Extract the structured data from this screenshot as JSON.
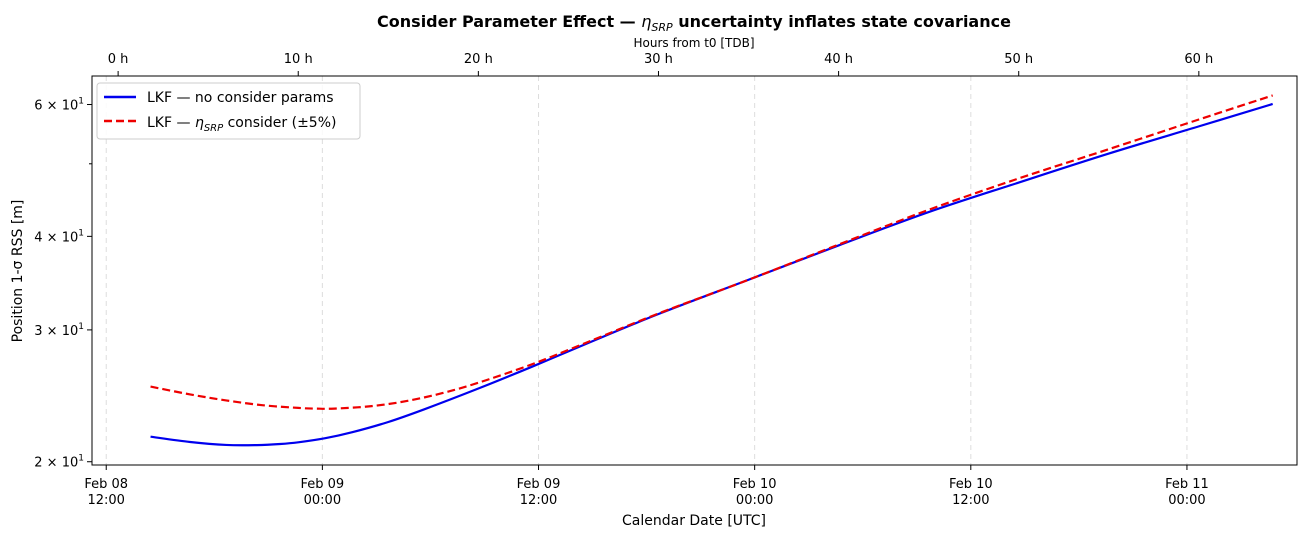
{
  "chart_data": {
    "type": "line",
    "title_main": "Consider Parameter Effect — ",
    "title_symbol": "η",
    "title_subscript": "SRP",
    "title_rest": " uncertainty inflates state covariance",
    "xlabel": "Calendar Date [UTC]",
    "ylabel": "Position 1-σ RSS [m]",
    "top_xlabel": "Hours from t0 [TDB]",
    "yscale": "log",
    "ylim": [
      19.8,
      65.5
    ],
    "xlim_hours": [
      -1.45,
      65.45
    ],
    "grid": "vertical dashed at bottom ticks",
    "legend_placement": "upper-left",
    "bottom_ticks": [
      {
        "hours": -0.66,
        "line1": "Feb 08",
        "line2": "12:00"
      },
      {
        "hours": 11.34,
        "line1": "Feb 09",
        "line2": "00:00"
      },
      {
        "hours": 23.34,
        "line1": "Feb 09",
        "line2": "12:00"
      },
      {
        "hours": 35.34,
        "line1": "Feb 10",
        "line2": "00:00"
      },
      {
        "hours": 47.34,
        "line1": "Feb 10",
        "line2": "12:00"
      },
      {
        "hours": 59.34,
        "line1": "Feb 11",
        "line2": "00:00"
      }
    ],
    "top_ticks": [
      {
        "hours": 0,
        "label": "0 h"
      },
      {
        "hours": 10,
        "label": "10 h"
      },
      {
        "hours": 20,
        "label": "20 h"
      },
      {
        "hours": 30,
        "label": "30 h"
      },
      {
        "hours": 40,
        "label": "40 h"
      },
      {
        "hours": 50,
        "label": "50 h"
      },
      {
        "hours": 60,
        "label": "60 h"
      }
    ],
    "y_major_ticks": [
      {
        "value": 20,
        "mantissa": "2",
        "base": "10",
        "exp": "1"
      },
      {
        "value": 30,
        "mantissa": "3",
        "base": "10",
        "exp": "1"
      },
      {
        "value": 40,
        "mantissa": "4",
        "base": "10",
        "exp": "1"
      },
      {
        "value": 60,
        "mantissa": "6",
        "base": "10",
        "exp": "1"
      }
    ],
    "y_minor_ticks": [
      50
    ],
    "series": [
      {
        "name_prefix": "LKF — no consider params",
        "name_symbol": "",
        "name_subscript": "",
        "name_suffix": "",
        "color": "#0000ee",
        "dash": "solid",
        "x": [
          1.8,
          4,
          6,
          7.7,
          9,
          10,
          11.5,
          13,
          15,
          17,
          20,
          23,
          26,
          30,
          35,
          40,
          45,
          50,
          55,
          60,
          64.1
        ],
        "y": [
          21.6,
          21.25,
          21.06,
          21.05,
          21.12,
          21.23,
          21.5,
          21.9,
          22.6,
          23.5,
          25.05,
          26.8,
          28.75,
          31.5,
          35.0,
          38.9,
          43.1,
          47.2,
          51.6,
          56.1,
          60.1
        ]
      },
      {
        "name_prefix": "LKF — ",
        "name_symbol": "η",
        "name_subscript": "SRP",
        "name_suffix": " consider (±5%)",
        "color": "#ee0000",
        "dash": "dashed",
        "x": [
          1.8,
          4,
          6,
          8,
          10,
          11,
          12,
          14,
          16,
          18,
          20,
          23,
          26,
          30,
          35,
          40,
          45,
          50,
          55,
          60,
          64.1
        ],
        "y": [
          25.2,
          24.6,
          24.15,
          23.8,
          23.6,
          23.55,
          23.55,
          23.72,
          24.1,
          24.7,
          25.5,
          27.0,
          28.85,
          31.55,
          35.0,
          39.0,
          43.4,
          47.8,
          52.3,
          57.3,
          61.7
        ]
      }
    ]
  }
}
